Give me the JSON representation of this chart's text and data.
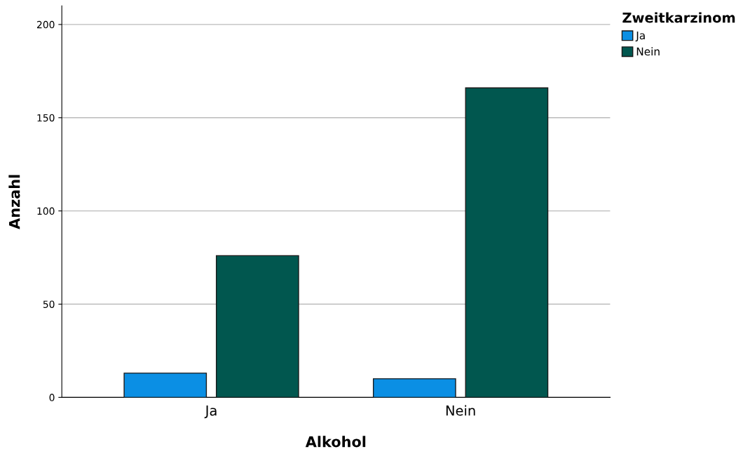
{
  "chart_data": {
    "type": "bar",
    "xlabel": "Alkohol",
    "ylabel": "Anzahl",
    "legend_title": "Zweitkarzinom",
    "categories": [
      "Ja",
      "Nein"
    ],
    "series": [
      {
        "name": "Ja",
        "color": "#0b8fe4",
        "values": [
          13,
          10
        ]
      },
      {
        "name": "Nein",
        "color": "#01574f",
        "values": [
          76,
          166
        ]
      }
    ],
    "ylim": [
      0,
      210
    ],
    "yticks": [
      0,
      50,
      100,
      150,
      200
    ],
    "grid": "y",
    "legend": "top right"
  }
}
